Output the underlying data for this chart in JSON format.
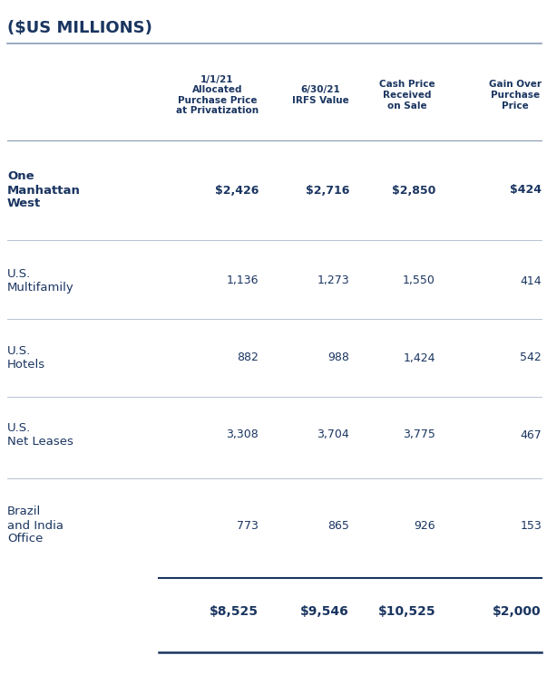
{
  "title": "($US MILLIONS)",
  "title_color": "#1a3560",
  "title_fontsize": 13,
  "header_color": "#1a3560",
  "data_color": "#1a3560",
  "bg_color": "#ffffff",
  "col_headers": [
    "1/1/21\nAllocated\nPurchase Price\nat Privatization",
    "6/30/21\nIRFS Value",
    "Cash Price\nReceived\non Sale",
    "Gain Over\nPurchase\nPrice"
  ],
  "rows": [
    {
      "label": "One\nManhattan\nWest",
      "values": [
        "$2,426",
        "$2,716",
        "$2,850",
        "$424"
      ],
      "bold": true
    },
    {
      "label": "U.S.\nMultifamily",
      "values": [
        "1,136",
        "1,273",
        "1,550",
        "414"
      ],
      "bold": false
    },
    {
      "label": "U.S.\nHotels",
      "values": [
        "882",
        "988",
        "1,424",
        "542"
      ],
      "bold": false
    },
    {
      "label": "U.S.\nNet Leases",
      "values": [
        "3,308",
        "3,704",
        "3,775",
        "467"
      ],
      "bold": false
    },
    {
      "label": "Brazil\nand India\nOffice",
      "values": [
        "773",
        "865",
        "926",
        "153"
      ],
      "bold": false
    }
  ],
  "total_row": {
    "values": [
      "$8,525",
      "$9,546",
      "$10,525",
      "$2,000"
    ],
    "bold": true
  },
  "line_color": "#8a9bb5",
  "top_line_color": "#8a9bb5",
  "total_line_color": "#1a3560",
  "header_fontsize": 7.5,
  "row_label_fontsize": 9.5,
  "row_value_fontsize": 9.0,
  "total_fontsize": 10.0
}
